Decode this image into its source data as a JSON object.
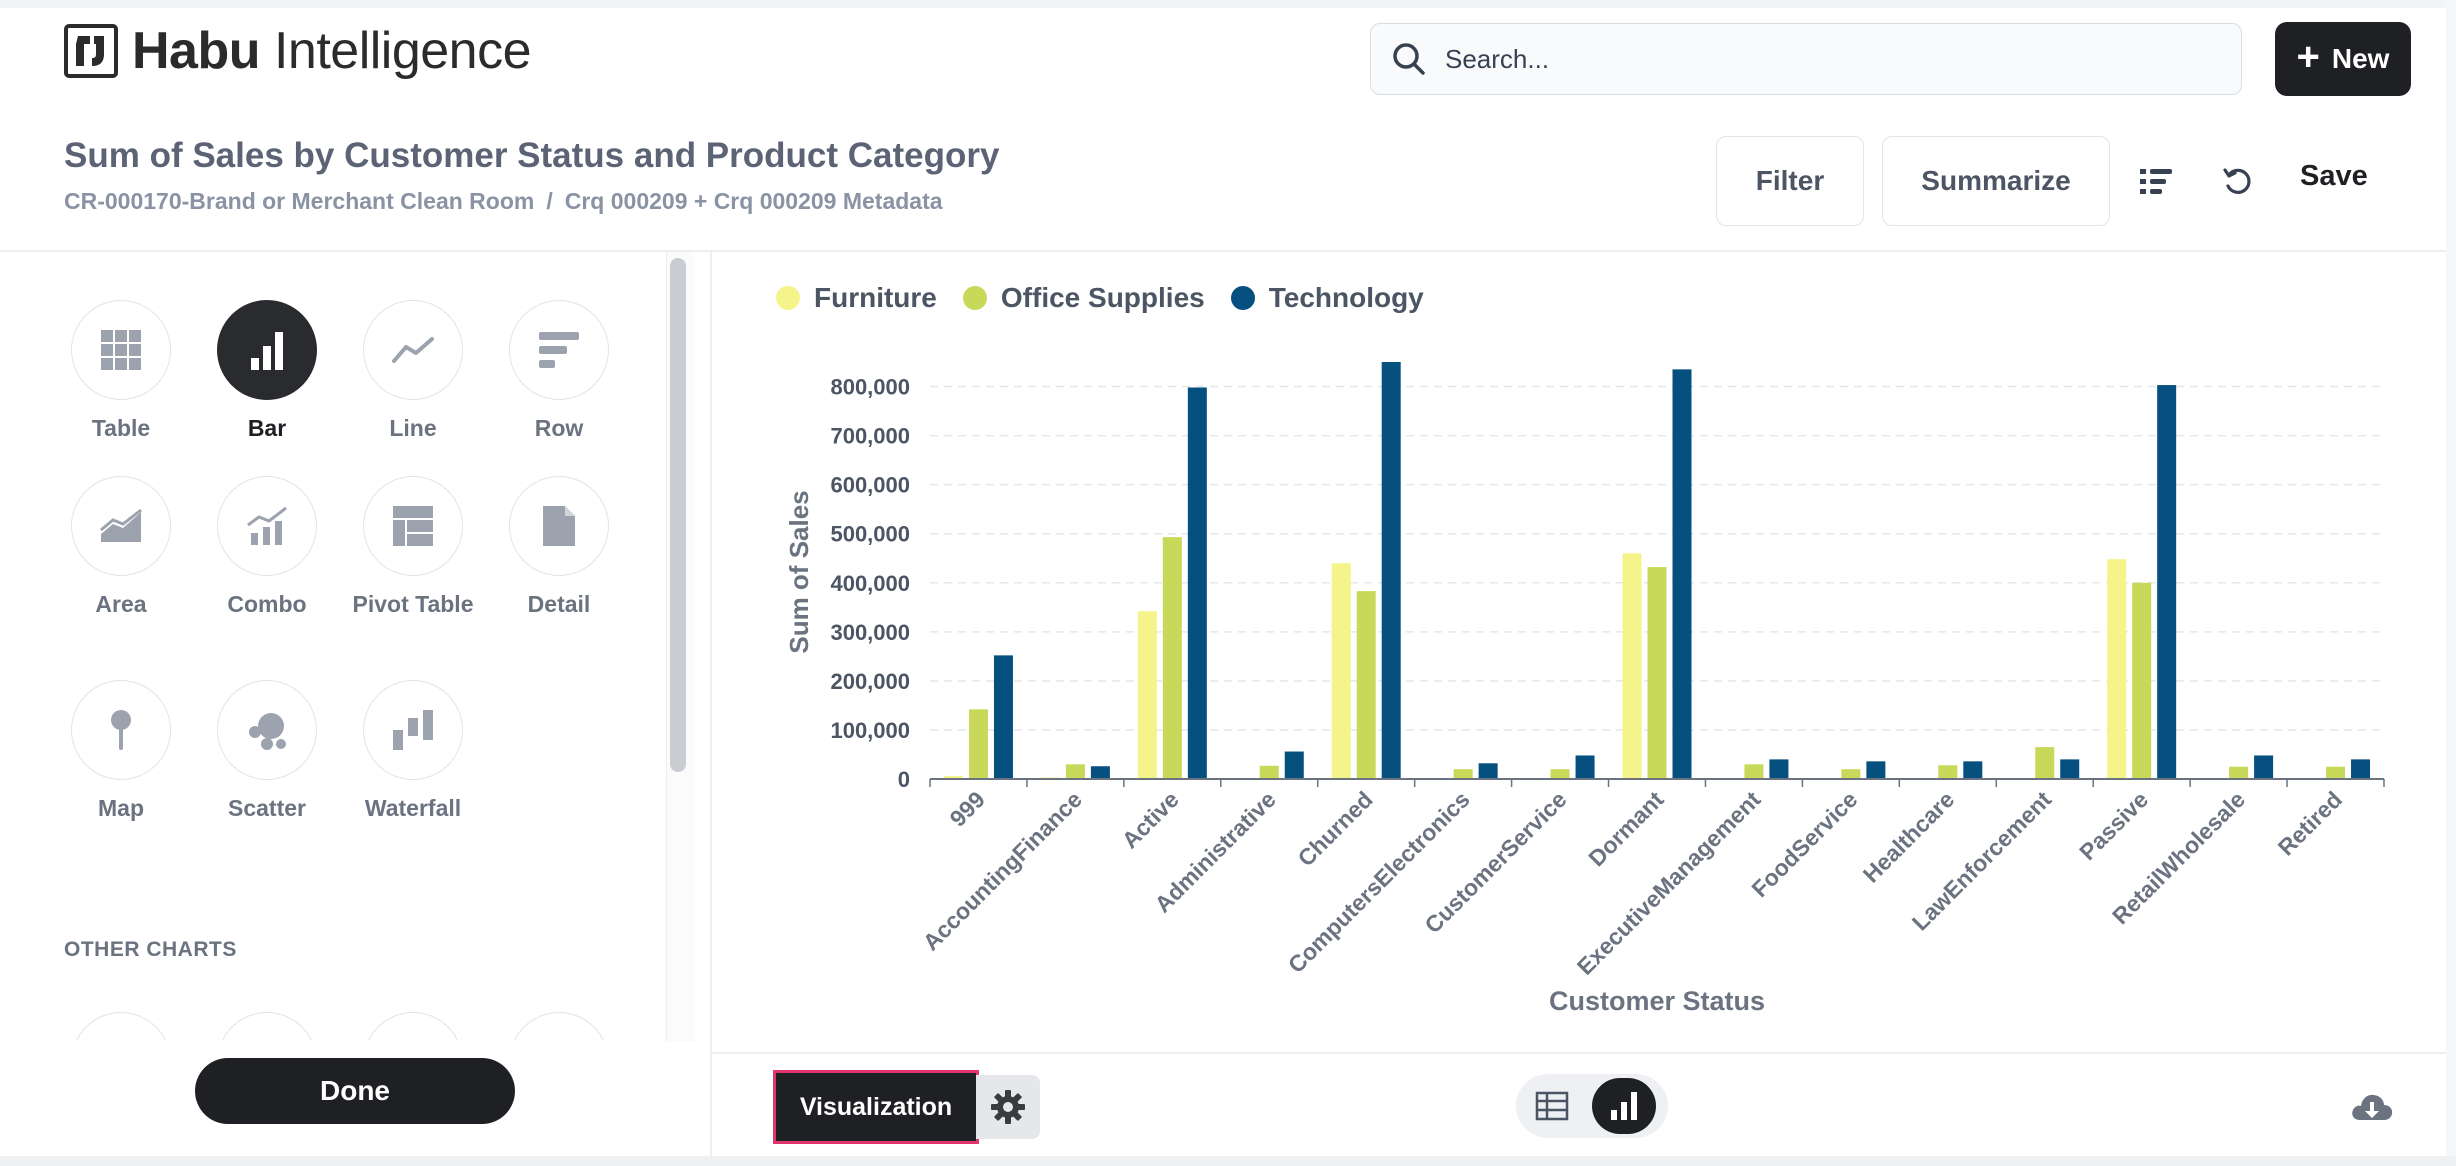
{
  "brand": {
    "name_bold": "Habu",
    "name_rest": "Intelligence"
  },
  "search": {
    "placeholder": "Search..."
  },
  "header": {
    "new_label": "New"
  },
  "question": {
    "title": "Sum of Sales by Customer Status and Product Category",
    "breadcrumb": [
      "CR-000170-Brand or Merchant Clean Room",
      "/",
      "Crq 000209 + Crq 000209 Metadata"
    ]
  },
  "toolbar": {
    "filter_label": "Filter",
    "summarize_label": "Summarize",
    "save_label": "Save"
  },
  "chart_types": [
    {
      "label": "Table",
      "icon": "table-icon",
      "active": false
    },
    {
      "label": "Bar",
      "icon": "bar-chart-icon",
      "active": true
    },
    {
      "label": "Line",
      "icon": "line-chart-icon",
      "active": false
    },
    {
      "label": "Row",
      "icon": "row-chart-icon",
      "active": false
    },
    {
      "label": "Area",
      "icon": "area-chart-icon",
      "active": false
    },
    {
      "label": "Combo",
      "icon": "combo-chart-icon",
      "active": false
    },
    {
      "label": "Pivot Table",
      "icon": "pivot-table-icon",
      "active": false
    },
    {
      "label": "Detail",
      "icon": "detail-icon",
      "active": false
    },
    {
      "label": "Map",
      "icon": "map-pin-icon",
      "active": false
    },
    {
      "label": "Scatter",
      "icon": "scatter-icon",
      "active": false
    },
    {
      "label": "Waterfall",
      "icon": "waterfall-icon",
      "active": false
    }
  ],
  "other_charts_label": "OTHER CHARTS",
  "done_label": "Done",
  "footer": {
    "visualization_label": "Visualization"
  },
  "colors": {
    "furniture": "#f4f48a",
    "office_supplies": "#c8d95a",
    "technology": "#06507f",
    "dark": "#1f2023",
    "highlight": "#e0356d"
  },
  "chart_data": {
    "type": "bar",
    "title": "",
    "xlabel": "Customer Status",
    "ylabel": "Sum of Sales",
    "ylim": [
      0,
      850000
    ],
    "yticks": [
      0,
      100000,
      200000,
      300000,
      400000,
      500000,
      600000,
      700000,
      800000
    ],
    "ytick_labels": [
      "0",
      "100,000",
      "200,000",
      "300,000",
      "400,000",
      "500,000",
      "600,000",
      "700,000",
      "800,000"
    ],
    "categories": [
      "999",
      "AccountingFinance",
      "Active",
      "Administrative",
      "Churned",
      "ComputersElectronics",
      "CustomerService",
      "Dormant",
      "ExecutiveManagement",
      "FoodService",
      "Healthcare",
      "LawEnforcement",
      "Passive",
      "RetailWholesale",
      "Retired"
    ],
    "series": [
      {
        "name": "Furniture",
        "color": "#f4f48a",
        "values": [
          6000,
          3000,
          342000,
          2000,
          440000,
          2000,
          2000,
          460000,
          2000,
          2000,
          2000,
          2000,
          448000,
          2000,
          2000
        ]
      },
      {
        "name": "Office Supplies",
        "color": "#c8d95a",
        "values": [
          142000,
          30000,
          493000,
          27000,
          383000,
          20000,
          20000,
          432000,
          30000,
          20000,
          28000,
          65000,
          400000,
          25000,
          25000
        ]
      },
      {
        "name": "Technology",
        "color": "#06507f",
        "values": [
          252000,
          26000,
          798000,
          56000,
          850000,
          32000,
          48000,
          835000,
          40000,
          36000,
          36000,
          40000,
          803000,
          48000,
          40000
        ]
      }
    ],
    "legend": "top-left",
    "grid": true
  }
}
